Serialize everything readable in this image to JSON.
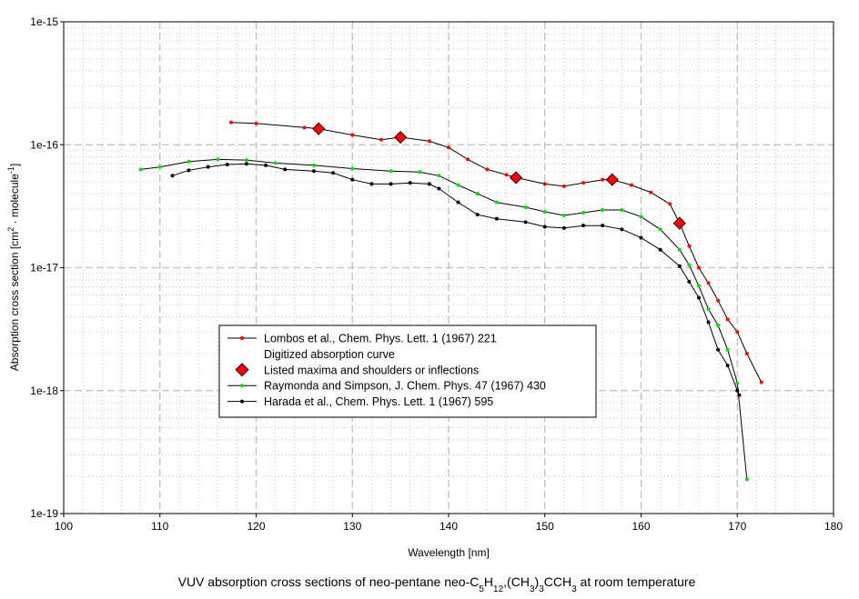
{
  "chart_data": {
    "type": "line",
    "title_parts": [
      {
        "t": "VUV absorption cross sections of neo-pentane neo-C",
        "s": ""
      },
      {
        "t": "5",
        "s": "sub"
      },
      {
        "t": "H",
        "s": ""
      },
      {
        "t": "12",
        "s": "sub"
      },
      {
        "t": ",(CH",
        "s": ""
      },
      {
        "t": "3",
        "s": "sub"
      },
      {
        "t": ")",
        "s": ""
      },
      {
        "t": "3",
        "s": "sub"
      },
      {
        "t": "CCH",
        "s": ""
      },
      {
        "t": "3",
        "s": "sub"
      },
      {
        "t": " at room temperature",
        "s": ""
      }
    ],
    "xlabel": "Wavelength [nm]",
    "ylabel_parts": [
      {
        "t": "Absorption cross section [cm",
        "s": ""
      },
      {
        "t": "2",
        "s": "sup"
      },
      {
        "t": " · molecule",
        "s": ""
      },
      {
        "t": "-1",
        "s": "sup"
      },
      {
        "t": "]",
        "s": ""
      }
    ],
    "xlim": [
      100,
      180
    ],
    "ylim": [
      1e-19,
      1e-15
    ],
    "yscale": "log",
    "grid": true,
    "x_ticks": [
      "100",
      "110",
      "120",
      "130",
      "140",
      "150",
      "160",
      "170",
      "180"
    ],
    "y_ticks": [
      "1e-19",
      "1e-18",
      "1e-17",
      "1e-16",
      "1e-15"
    ],
    "legend_position": "center-left",
    "legend": [
      {
        "label": "Lombos et al., Chem. Phys. Lett. 1 (1967) 221",
        "marker": "line",
        "color": "#ff0000"
      },
      {
        "label": "Digitized absorption curve",
        "marker": "none",
        "color": ""
      },
      {
        "label": "Listed maxima and shoulders or inflections",
        "marker": "diamond",
        "color": "#ff0000"
      },
      {
        "label": "Raymonda and Simpson, J. Chem. Phys. 47 (1967) 430",
        "marker": "line",
        "color": "#00e000"
      },
      {
        "label": "Harada et al., Chem. Phys. Lett. 1 (1967) 595",
        "marker": "line",
        "color": "#000000"
      }
    ],
    "series": [
      {
        "name": "Lombos et al., Chem. Phys. Lett. 1 (1967) 221",
        "color": "#ff0000",
        "x": [
          117.4,
          120,
          125,
          126.5,
          130,
          133,
          135,
          138,
          140,
          142,
          144,
          146,
          147,
          150,
          152,
          154,
          156,
          157,
          159,
          161,
          163,
          164,
          165,
          166,
          167,
          168,
          169,
          170,
          171,
          172.5
        ],
        "y": [
          1.52e-16,
          1.49e-16,
          1.38e-16,
          1.35e-16,
          1.2e-16,
          1.1e-16,
          1.15e-16,
          1.07e-16,
          9.5e-17,
          7.6e-17,
          6.3e-17,
          5.7e-17,
          5.4e-17,
          4.8e-17,
          4.6e-17,
          4.9e-17,
          5.2e-17,
          5.2e-17,
          4.7e-17,
          4.1e-17,
          3.3e-17,
          2.3e-17,
          1.5e-17,
          1e-17,
          7.5e-18,
          5.4e-18,
          3.8e-18,
          3e-18,
          2e-18,
          1.17e-18
        ]
      },
      {
        "name": "Raymonda and Simpson, J. Chem. Phys. 47 (1967) 430",
        "color": "#00e000",
        "x": [
          108,
          110,
          113,
          116,
          119,
          122,
          126,
          130,
          134,
          137,
          139,
          141,
          143,
          145,
          148,
          150,
          152,
          154,
          156,
          158,
          160,
          162,
          164,
          165,
          166,
          167,
          168,
          169,
          170,
          171
        ],
        "y": [
          6.3e-17,
          6.6e-17,
          7.3e-17,
          7.6e-17,
          7.5e-17,
          7.1e-17,
          6.8e-17,
          6.4e-17,
          6.1e-17,
          6e-17,
          5.6e-17,
          4.7e-17,
          4e-17,
          3.4e-17,
          3.1e-17,
          2.85e-17,
          2.66e-17,
          2.8e-17,
          2.95e-17,
          2.95e-17,
          2.6e-17,
          2.05e-17,
          1.4e-17,
          1.05e-17,
          7.1e-18,
          4.6e-18,
          3.4e-18,
          2.15e-18,
          1.15e-18,
          1.9e-19
        ]
      },
      {
        "name": "Harada et al., Chem. Phys. Lett. 1 (1967) 595",
        "color": "#000000",
        "x": [
          111.3,
          113,
          115,
          117,
          119,
          121,
          123,
          126,
          128,
          130,
          132,
          134,
          136,
          138,
          139,
          141,
          143,
          145,
          148,
          150,
          152,
          154,
          156,
          158,
          160,
          162,
          164,
          165,
          166,
          167,
          168,
          169,
          170,
          170.2
        ],
        "y": [
          5.6e-17,
          6.2e-17,
          6.6e-17,
          6.9e-17,
          7e-17,
          6.8e-17,
          6.3e-17,
          6.1e-17,
          5.9e-17,
          5.2e-17,
          4.8e-17,
          4.8e-17,
          4.9e-17,
          4.8e-17,
          4.4e-17,
          3.4e-17,
          2.7e-17,
          2.5e-17,
          2.35e-17,
          2.15e-17,
          2.1e-17,
          2.2e-17,
          2.2e-17,
          2.05e-17,
          1.75e-17,
          1.4e-17,
          1.03e-17,
          7.7e-18,
          5.7e-18,
          3.6e-18,
          2.15e-18,
          1.6e-18,
          1e-18,
          9.2e-19
        ]
      }
    ],
    "maxima": {
      "name": "Listed maxima and shoulders or inflections",
      "color": "#ff0000",
      "x": [
        126.5,
        135,
        147,
        157,
        164
      ],
      "y": [
        1.35e-16,
        1.15e-16,
        5.4e-17,
        5.2e-17,
        2.3e-17
      ]
    }
  }
}
